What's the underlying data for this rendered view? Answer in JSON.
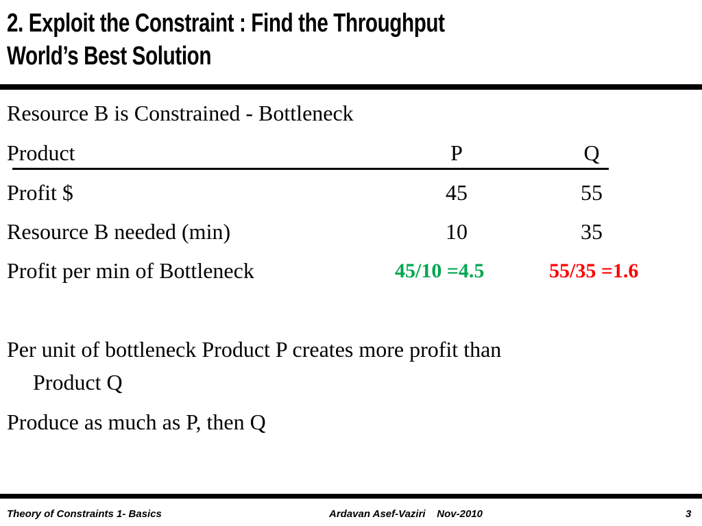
{
  "slide": {
    "title_line1": "2. Exploit the Constraint : Find the Throughput",
    "title_line2": "World’s Best Solution",
    "line_constraint": "Resource B is Constrained - Bottleneck",
    "table": {
      "header_label": "Product",
      "col_p": "P",
      "col_q": "Q",
      "rows": [
        {
          "label": "Profit $",
          "p": "45",
          "q": "55"
        },
        {
          "label": "Resource B needed (min)",
          "p": "10",
          "q": "35"
        }
      ],
      "ratio_label": "Profit per min of Bottleneck",
      "ratio_p": "45/10 =4.5",
      "ratio_q": "55/35 =1.6"
    },
    "conclusion_line1": "Per unit of bottleneck Product P creates more profit than",
    "conclusion_line2": "Product Q",
    "action": "Produce as much as P, then Q"
  },
  "colors": {
    "better": "#00a651",
    "worse": "#ff0000"
  },
  "footer": {
    "left": "Theory of Constraints 1- Basics",
    "center": "Ardavan Asef-Vaziri    Nov-2010",
    "page": "3"
  }
}
